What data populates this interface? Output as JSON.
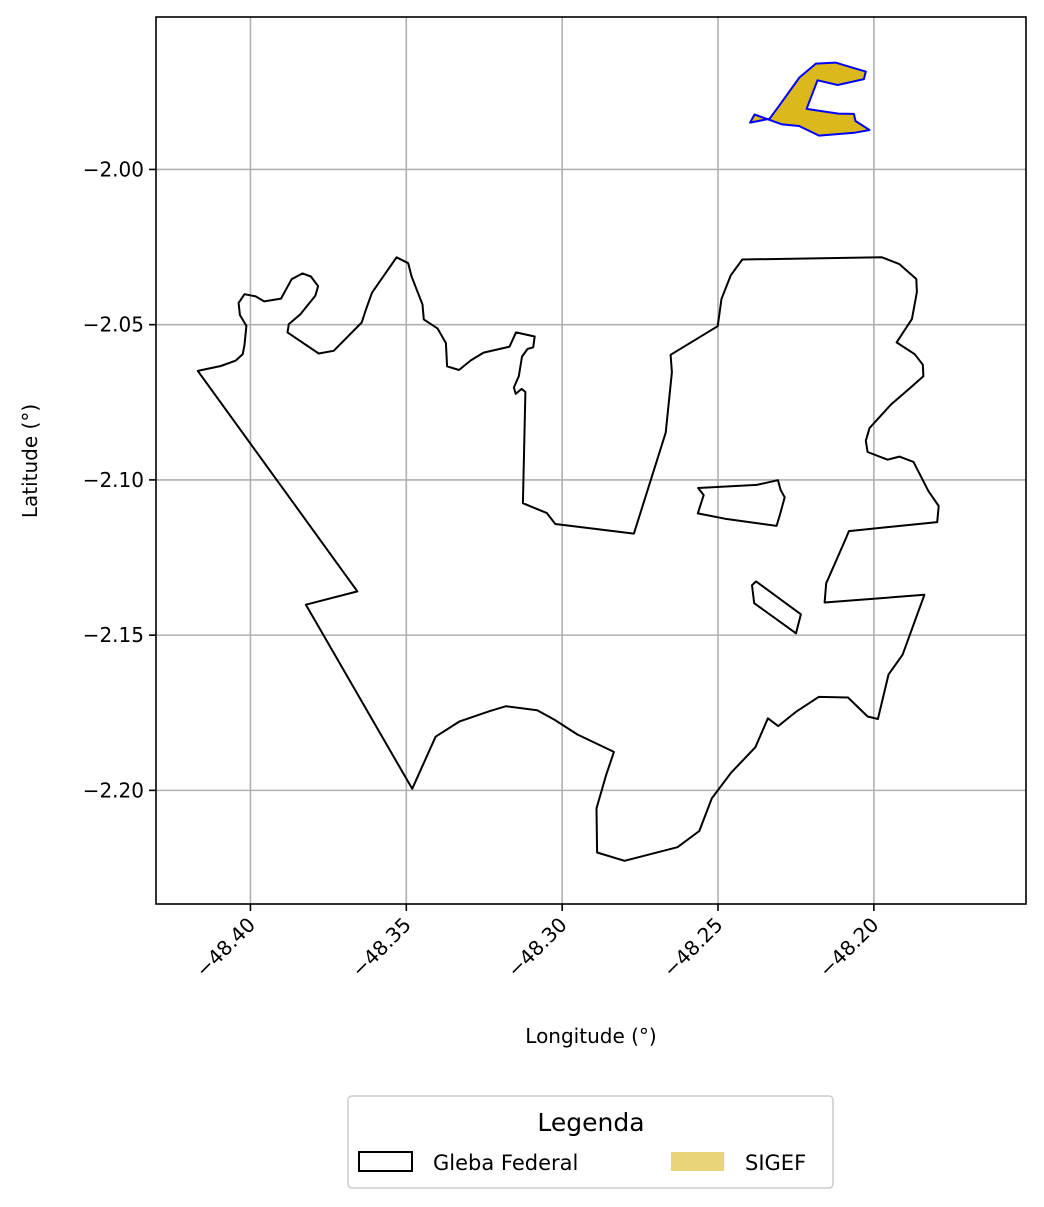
{
  "chart_data": {
    "type": "map",
    "xlabel": "Longitude (°)",
    "ylabel": "Latitude (°)",
    "xlim": [
      -48.4303,
      -48.1512
    ],
    "ylim": [
      -2.2366,
      -1.9509
    ],
    "xticks": [
      -48.4,
      -48.35,
      -48.3,
      -48.25,
      -48.2
    ],
    "xtick_labels": [
      "−48.40",
      "−48.35",
      "−48.30",
      "−48.25",
      "−48.20"
    ],
    "yticks": [
      -2.0,
      -2.05,
      -2.1,
      -2.15,
      -2.2
    ],
    "ytick_labels": [
      "−2.00",
      "−2.05",
      "−2.10",
      "−2.15",
      "−2.20"
    ],
    "grid": true,
    "legend": {
      "title": "Legenda",
      "placement": "below plot",
      "entries": [
        {
          "label": "Gleba Federal",
          "style": "outline"
        },
        {
          "label": "SIGEF",
          "style": "filled"
        }
      ]
    },
    "layers": [
      {
        "name": "Gleba Federal",
        "edge_color": "#000000",
        "fill": "none",
        "polygons": [
          [
            [
              -48.4169,
              -2.0649
            ],
            [
              -48.4095,
              -2.0633
            ],
            [
              -48.4048,
              -2.0616
            ],
            [
              -48.4025,
              -2.0595
            ],
            [
              -48.4019,
              -2.0565
            ],
            [
              -48.4013,
              -2.0504
            ],
            [
              -48.4034,
              -2.0469
            ],
            [
              -48.4038,
              -2.043
            ],
            [
              -48.4019,
              -2.0402
            ],
            [
              -48.3983,
              -2.0409
            ],
            [
              -48.3956,
              -2.0425
            ],
            [
              -48.3902,
              -2.0416
            ],
            [
              -48.3868,
              -2.0354
            ],
            [
              -48.3833,
              -2.0335
            ],
            [
              -48.3806,
              -2.0345
            ],
            [
              -48.3783,
              -2.0376
            ],
            [
              -48.3792,
              -2.0407
            ],
            [
              -48.384,
              -2.0467
            ],
            [
              -48.3877,
              -2.0498
            ],
            [
              -48.3881,
              -2.0525
            ],
            [
              -48.3781,
              -2.0593
            ],
            [
              -48.3733,
              -2.0584
            ],
            [
              -48.3643,
              -2.0493
            ],
            [
              -48.3629,
              -2.045
            ],
            [
              -48.361,
              -2.0397
            ],
            [
              -48.3531,
              -2.0283
            ],
            [
              -48.3494,
              -2.0302
            ],
            [
              -48.3483,
              -2.0345
            ],
            [
              -48.3466,
              -2.0389
            ],
            [
              -48.3448,
              -2.0435
            ],
            [
              -48.3444,
              -2.0483
            ],
            [
              -48.34,
              -2.0512
            ],
            [
              -48.3373,
              -2.0559
            ],
            [
              -48.3369,
              -2.0634
            ],
            [
              -48.3331,
              -2.0646
            ],
            [
              -48.3293,
              -2.0615
            ],
            [
              -48.3252,
              -2.059
            ],
            [
              -48.3169,
              -2.0571
            ],
            [
              -48.3148,
              -2.0525
            ],
            [
              -48.3088,
              -2.0538
            ],
            [
              -48.3093,
              -2.0573
            ],
            [
              -48.3111,
              -2.0578
            ],
            [
              -48.3129,
              -2.0603
            ],
            [
              -48.3139,
              -2.0666
            ],
            [
              -48.3155,
              -2.0702
            ],
            [
              -48.3149,
              -2.0723
            ],
            [
              -48.313,
              -2.0707
            ],
            [
              -48.3118,
              -2.0717
            ],
            [
              -48.3126,
              -2.1075
            ],
            [
              -48.3049,
              -2.1107
            ],
            [
              -48.3022,
              -2.1142
            ],
            [
              -48.277,
              -2.1173
            ],
            [
              -48.2668,
              -2.0848
            ],
            [
              -48.2648,
              -2.0653
            ],
            [
              -48.2652,
              -2.0597
            ],
            [
              -48.2501,
              -2.0505
            ],
            [
              -48.2489,
              -2.0417
            ],
            [
              -48.2459,
              -2.0341
            ],
            [
              -48.2422,
              -2.029
            ],
            [
              -48.1974,
              -2.0283
            ],
            [
              -48.1918,
              -2.0305
            ],
            [
              -48.1864,
              -2.0353
            ],
            [
              -48.1862,
              -2.0395
            ],
            [
              -48.1878,
              -2.0482
            ],
            [
              -48.1927,
              -2.0557
            ],
            [
              -48.1869,
              -2.0595
            ],
            [
              -48.1843,
              -2.0629
            ],
            [
              -48.1841,
              -2.0666
            ],
            [
              -48.1883,
              -2.0703
            ],
            [
              -48.1945,
              -2.0757
            ],
            [
              -48.2014,
              -2.0833
            ],
            [
              -48.2026,
              -2.0874
            ],
            [
              -48.202,
              -2.091
            ],
            [
              -48.1956,
              -2.0935
            ],
            [
              -48.1918,
              -2.0925
            ],
            [
              -48.1873,
              -2.0942
            ],
            [
              -48.1825,
              -2.1036
            ],
            [
              -48.1792,
              -2.1084
            ],
            [
              -48.1797,
              -2.1136
            ],
            [
              -48.208,
              -2.1165
            ],
            [
              -48.209,
              -2.1189
            ],
            [
              -48.2153,
              -2.1333
            ],
            [
              -48.2158,
              -2.1395
            ],
            [
              -48.1838,
              -2.137
            ],
            [
              -48.1908,
              -2.1563
            ],
            [
              -48.1953,
              -2.1627
            ],
            [
              -48.1987,
              -2.177
            ],
            [
              -48.202,
              -2.1762
            ],
            [
              -48.2083,
              -2.1701
            ],
            [
              -48.2177,
              -2.1699
            ],
            [
              -48.2251,
              -2.1748
            ],
            [
              -48.2307,
              -2.1793
            ],
            [
              -48.234,
              -2.1768
            ],
            [
              -48.238,
              -2.1861
            ],
            [
              -48.2458,
              -2.1943
            ],
            [
              -48.252,
              -2.2026
            ],
            [
              -48.256,
              -2.2131
            ],
            [
              -48.263,
              -2.2183
            ],
            [
              -48.28,
              -2.2227
            ],
            [
              -48.2888,
              -2.22
            ],
            [
              -48.289,
              -2.2058
            ],
            [
              -48.286,
              -2.1954
            ],
            [
              -48.2834,
              -2.1876
            ],
            [
              -48.2951,
              -2.182
            ],
            [
              -48.3024,
              -2.1773
            ],
            [
              -48.308,
              -2.1742
            ],
            [
              -48.318,
              -2.1729
            ],
            [
              -48.3231,
              -2.1744
            ],
            [
              -48.3329,
              -2.1778
            ],
            [
              -48.3406,
              -2.1827
            ],
            [
              -48.3481,
              -2.1995
            ],
            [
              -48.3822,
              -2.1402
            ],
            [
              -48.3657,
              -2.1359
            ]
          ],
          [
            [
              -48.2564,
              -2.1026
            ],
            [
              -48.2546,
              -2.1049
            ],
            [
              -48.2565,
              -2.1108
            ],
            [
              -48.2478,
              -2.1125
            ],
            [
              -48.2312,
              -2.1148
            ],
            [
              -48.2301,
              -2.111
            ],
            [
              -48.2286,
              -2.1056
            ],
            [
              -48.2299,
              -2.1033
            ],
            [
              -48.2308,
              -2.1001
            ],
            [
              -48.2376,
              -2.1016
            ]
          ],
          [
            [
              -48.2391,
              -2.1339
            ],
            [
              -48.2384,
              -2.1397
            ],
            [
              -48.225,
              -2.1494
            ],
            [
              -48.2234,
              -2.1433
            ],
            [
              -48.2378,
              -2.1327
            ]
          ]
        ]
      },
      {
        "name": "SIGEF",
        "edge_color": "#0000ff",
        "fill": "#dbb91d",
        "polygons": [
          [
            [
              -48.2397,
              -1.9849
            ],
            [
              -48.2335,
              -1.9837
            ],
            [
              -48.2304,
              -1.9795
            ],
            [
              -48.2239,
              -1.9704
            ],
            [
              -48.2186,
              -1.9659
            ],
            [
              -48.2123,
              -1.9656
            ],
            [
              -48.2063,
              -1.9674
            ],
            [
              -48.2026,
              -1.9685
            ],
            [
              -48.2032,
              -1.9709
            ],
            [
              -48.2116,
              -1.9728
            ],
            [
              -48.2181,
              -1.9713
            ],
            [
              -48.2216,
              -1.9805
            ],
            [
              -48.2176,
              -1.9811
            ],
            [
              -48.2114,
              -1.982
            ],
            [
              -48.2064,
              -1.9821
            ],
            [
              -48.2059,
              -1.9844
            ],
            [
              -48.2014,
              -1.9873
            ],
            [
              -48.2063,
              -1.9882
            ],
            [
              -48.2176,
              -1.9891
            ],
            [
              -48.224,
              -1.986
            ],
            [
              -48.2294,
              -1.9855
            ],
            [
              -48.2383,
              -1.9823
            ]
          ]
        ]
      }
    ]
  }
}
